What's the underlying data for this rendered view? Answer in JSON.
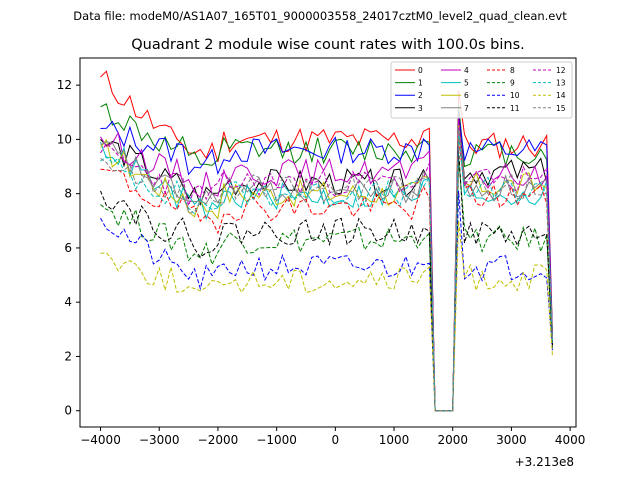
{
  "figure": {
    "suptitle": "Data file: modeM0/AS1A07_165T01_9000003558_24017cztM0_level2_quad_clean.evt"
  },
  "chart_data": {
    "type": "line",
    "title": "Quadrant 2 module wise count rates with 100.0s bins.",
    "xlabel": "",
    "ylabel": "",
    "x_offset_label": "+3.213e8",
    "xlim": [
      -4350,
      4100
    ],
    "ylim": [
      -0.6,
      13.0
    ],
    "x_ticks": [
      -4000,
      -3000,
      -2000,
      -1000,
      0,
      1000,
      2000,
      3000,
      4000
    ],
    "x_tick_labels": [
      "−4000",
      "−3000",
      "−2000",
      "−1000",
      "0",
      "1000",
      "2000",
      "3000",
      "4000"
    ],
    "y_ticks": [
      0,
      2,
      4,
      6,
      8,
      10,
      12
    ],
    "y_tick_labels": [
      "0",
      "2",
      "4",
      "6",
      "8",
      "10",
      "12"
    ],
    "grid": false,
    "legend_position": "top-right",
    "x_start": -4000,
    "x_step": 100,
    "n_points": 78,
    "gap_range": [
      1700,
      2000
    ],
    "series": [
      {
        "name": "0",
        "color": "#ff0000",
        "dash": "solid",
        "start": 12.3,
        "base": 10.0,
        "spike": 11.8,
        "late": 9.8,
        "end": 2.8
      },
      {
        "name": "1",
        "color": "#008000",
        "dash": "solid",
        "start": 11.2,
        "base": 9.6,
        "spike": 11.3,
        "late": 9.5,
        "end": 2.7
      },
      {
        "name": "2",
        "color": "#0000ff",
        "dash": "solid",
        "start": 10.4,
        "base": 9.6,
        "spike": 11.0,
        "late": 9.6,
        "end": 2.6
      },
      {
        "name": "3",
        "color": "#000000",
        "dash": "solid",
        "start": 10.0,
        "base": 8.4,
        "spike": 10.9,
        "late": 8.8,
        "end": 2.5
      },
      {
        "name": "4",
        "color": "#bf00bf",
        "dash": "solid",
        "start": 10.1,
        "base": 8.8,
        "spike": 10.8,
        "late": 8.6,
        "end": 2.6
      },
      {
        "name": "5",
        "color": "#00bfbf",
        "dash": "solid",
        "start": 9.9,
        "base": 7.9,
        "spike": 10.5,
        "late": 8.0,
        "end": 2.4
      },
      {
        "name": "6",
        "color": "#bfbf00",
        "dash": "solid",
        "start": 9.7,
        "base": 8.0,
        "spike": 10.6,
        "late": 8.3,
        "end": 2.4
      },
      {
        "name": "7",
        "color": "#808080",
        "dash": "solid",
        "start": 9.8,
        "base": 8.1,
        "spike": 10.4,
        "late": 8.2,
        "end": 2.5
      },
      {
        "name": "8",
        "color": "#ff0000",
        "dash": "dashed",
        "start": 8.9,
        "base": 7.5,
        "spike": 10.0,
        "late": 7.9,
        "end": 2.4
      },
      {
        "name": "9",
        "color": "#008000",
        "dash": "dashed",
        "start": 7.6,
        "base": 6.3,
        "spike": 9.3,
        "late": 6.3,
        "end": 2.3
      },
      {
        "name": "10",
        "color": "#0000ff",
        "dash": "dashed",
        "start": 7.1,
        "base": 5.3,
        "spike": 8.1,
        "late": 5.3,
        "end": 2.2
      },
      {
        "name": "11",
        "color": "#000000",
        "dash": "dashed",
        "start": 8.1,
        "base": 6.6,
        "spike": 9.6,
        "late": 6.5,
        "end": 2.4
      },
      {
        "name": "12",
        "color": "#bf00bf",
        "dash": "dashed",
        "start": 9.5,
        "base": 8.4,
        "spike": 10.7,
        "late": 8.5,
        "end": 2.6
      },
      {
        "name": "13",
        "color": "#00bfbf",
        "dash": "dashed",
        "start": 9.2,
        "base": 8.0,
        "spike": 10.3,
        "late": 8.1,
        "end": 2.5
      },
      {
        "name": "14",
        "color": "#bfbf00",
        "dash": "dashed",
        "start": 5.8,
        "base": 4.8,
        "spike": 7.0,
        "late": 4.9,
        "end": 2.0
      },
      {
        "name": "15",
        "color": "#808080",
        "dash": "dashed",
        "start": 9.3,
        "base": 8.2,
        "spike": 10.4,
        "late": 8.3,
        "end": 2.6
      }
    ]
  }
}
